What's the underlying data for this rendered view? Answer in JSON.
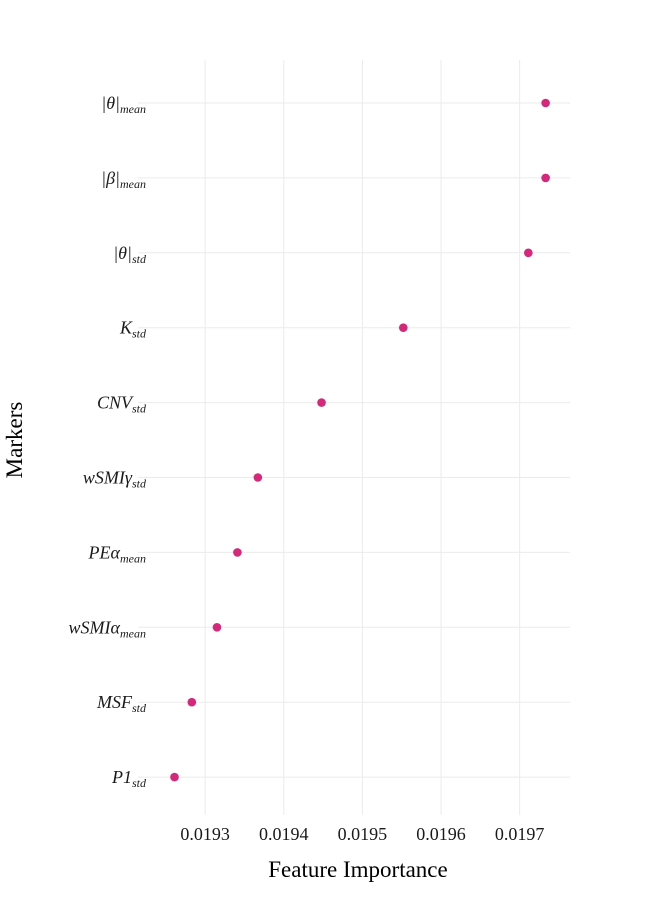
{
  "chart_data": {
    "type": "scatter",
    "xlabel": "Feature Importance",
    "ylabel": "Markers",
    "xlim": [
      0.01924,
      0.019764
    ],
    "x_ticks": [
      "0.0193",
      "0.0194",
      "0.0195",
      "0.0196",
      "0.0197"
    ],
    "grid": true,
    "legend": "none",
    "point_color": "#d6287a",
    "categories": [
      {
        "main": "|θ|",
        "sub": "mean"
      },
      {
        "main": "|β|",
        "sub": "mean"
      },
      {
        "main": "|θ|",
        "sub": "std"
      },
      {
        "main": "K",
        "sub": "std"
      },
      {
        "main": "CNV",
        "sub": "std"
      },
      {
        "main": "wSMIγ",
        "sub": "std"
      },
      {
        "main": "PEα",
        "sub": "mean"
      },
      {
        "main": "wSMIα",
        "sub": "mean"
      },
      {
        "main": "MSF",
        "sub": "std"
      },
      {
        "main": "P1",
        "sub": "std"
      }
    ],
    "values": [
      0.019733,
      0.019733,
      0.019711,
      0.019552,
      0.019448,
      0.019367,
      0.019341,
      0.019315,
      0.019283,
      0.019261
    ]
  }
}
